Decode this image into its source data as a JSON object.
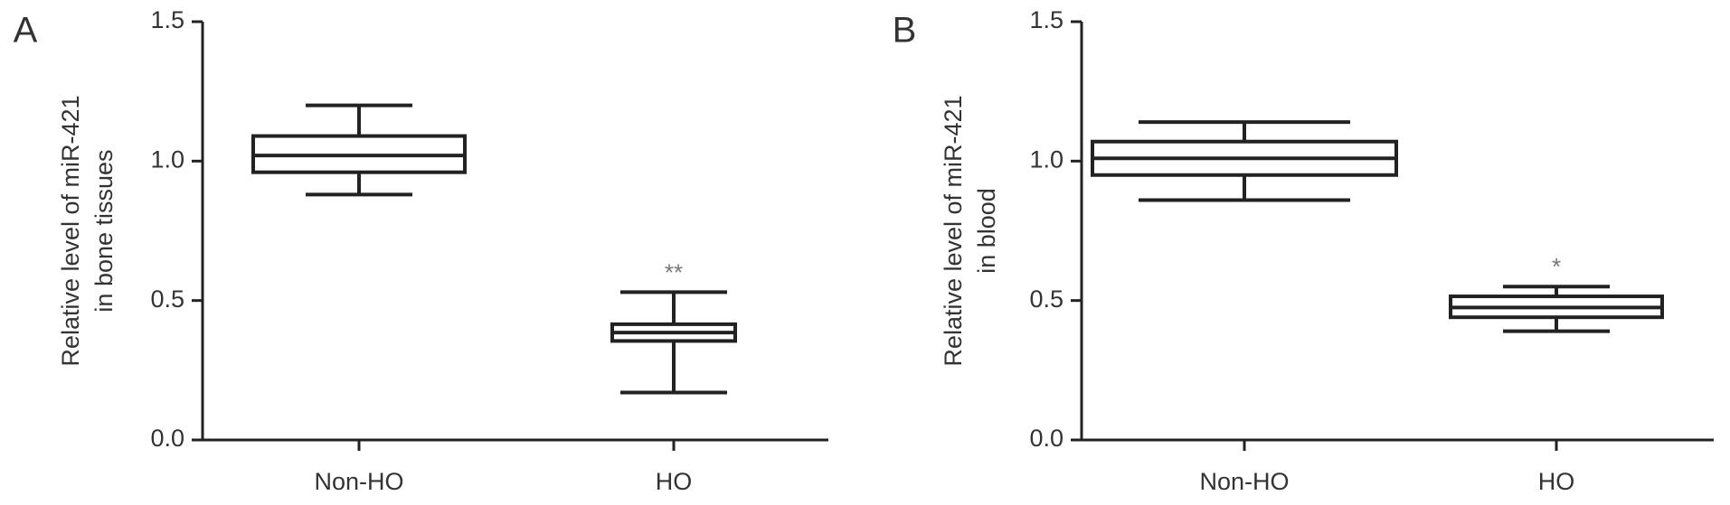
{
  "chart_data": [
    {
      "type": "box",
      "panel_label": "A",
      "y_label": [
        "Relative level of miR-421",
        "in bone tissues"
      ],
      "categories": [
        "Non-HO",
        "HO"
      ],
      "boxes": [
        {
          "min": 0.88,
          "q1": 0.96,
          "median": 1.02,
          "q3": 1.09,
          "max": 1.2
        },
        {
          "min": 0.17,
          "q1": 0.355,
          "median": 0.385,
          "q3": 0.415,
          "max": 0.53,
          "annotation": "**"
        }
      ],
      "color": "#222222",
      "ylim": [
        0,
        1.5
      ],
      "yticks": [
        {
          "value": 0,
          "label": "0.0"
        },
        0.5,
        {
          "value": 1,
          "label": "1.0"
        },
        1.5
      ]
    },
    {
      "type": "box",
      "panel_label": "B",
      "y_label": [
        "Relative level of miR-421",
        "in blood"
      ],
      "categories": [
        "Non-HO",
        "HO"
      ],
      "boxes": [
        {
          "min": 0.86,
          "q1": 0.95,
          "median": 1.01,
          "q3": 1.07,
          "max": 1.14
        },
        {
          "min": 0.39,
          "q1": 0.44,
          "median": 0.475,
          "q3": 0.515,
          "max": 0.55,
          "annotation": "*"
        }
      ],
      "color": "#222222",
      "ylim": [
        0,
        1.5
      ],
      "yticks": [
        {
          "value": 0,
          "label": "0.0"
        },
        0.5,
        {
          "value": 1,
          "label": "1.0"
        },
        1.5
      ]
    }
  ]
}
